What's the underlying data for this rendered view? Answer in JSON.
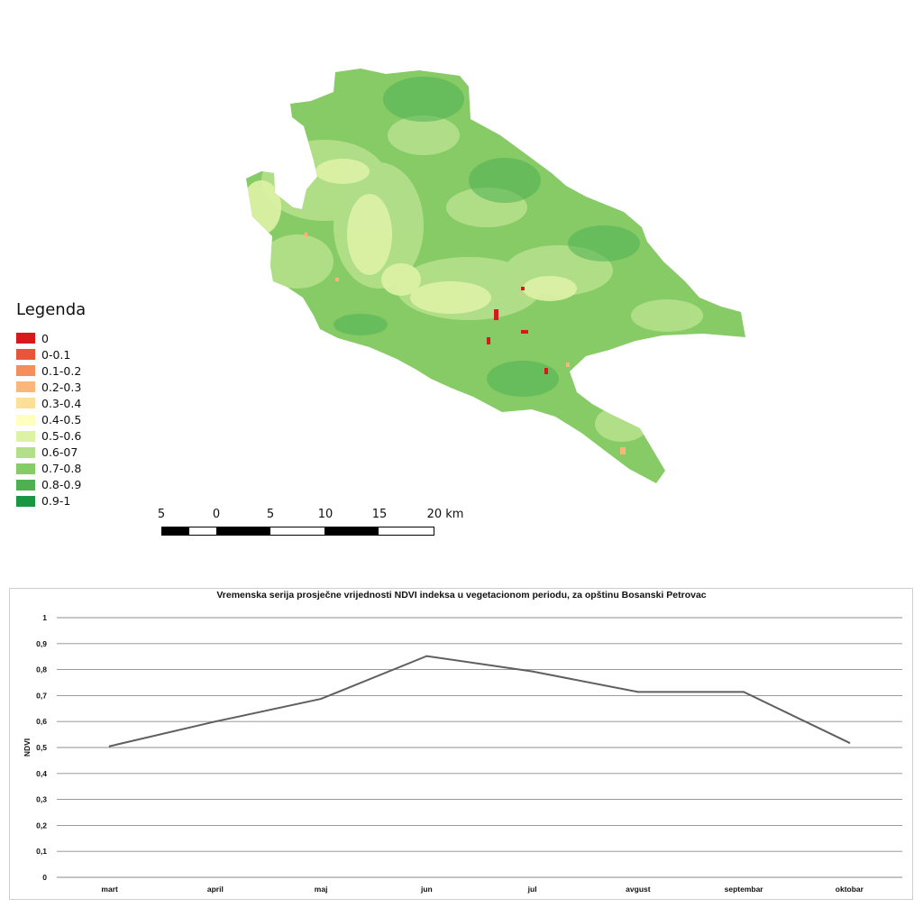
{
  "legend": {
    "title": "Legenda",
    "items": [
      {
        "label": "0",
        "color": "#d7191c"
      },
      {
        "label": "0-0.1",
        "color": "#e8553b"
      },
      {
        "label": "0.1-0.2",
        "color": "#f48f5b"
      },
      {
        "label": "0.2-0.3",
        "color": "#fbb77a"
      },
      {
        "label": "0.3-0.4",
        "color": "#fedf99"
      },
      {
        "label": "0.4-0.5",
        "color": "#ffffc0"
      },
      {
        "label": "0.5-0.6",
        "color": "#def2a6"
      },
      {
        "label": "0.6-07",
        "color": "#b3df8a"
      },
      {
        "label": "0.7-0.8",
        "color": "#86cb66"
      },
      {
        "label": "0.8-0.9",
        "color": "#4fb052"
      },
      {
        "label": "0.9-1",
        "color": "#1a9641"
      }
    ]
  },
  "scalebar": {
    "labels": [
      "5",
      "0",
      "5",
      "10",
      "15",
      "20 km"
    ]
  },
  "chart_data": {
    "type": "line",
    "title": "Vremenska serija prosječne vrijednosti NDVI indeksa u vegetacionom periodu, za opštinu Bosanski Petrovac",
    "xlabel": "",
    "ylabel": "NDVI",
    "categories": [
      "mart",
      "april",
      "maj",
      "jun",
      "jul",
      "avgust",
      "septembar",
      "oktobar"
    ],
    "values": [
      0.505,
      0.6,
      0.687,
      0.852,
      0.793,
      0.714,
      0.714,
      0.518
    ],
    "ylim": [
      0,
      1
    ],
    "yticks": [
      "0",
      "0,1",
      "0,2",
      "0,3",
      "0,4",
      "0,5",
      "0,6",
      "0,7",
      "0,8",
      "0,9",
      "1"
    ],
    "grid": true,
    "line_color": "#5f5f5f"
  }
}
